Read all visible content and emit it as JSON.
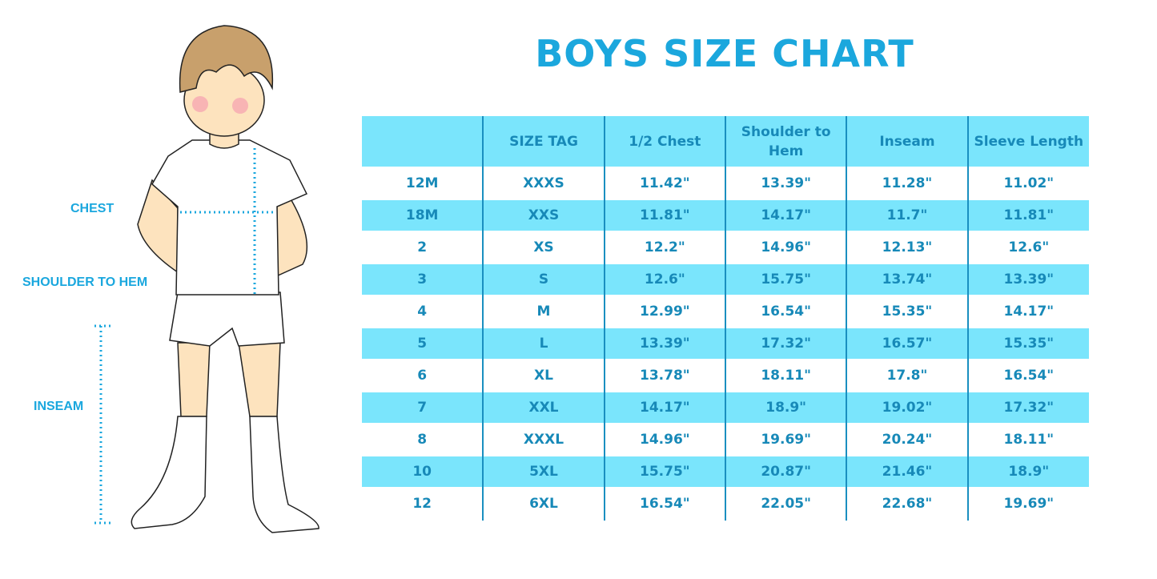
{
  "title": "BOYS SIZE CHART",
  "figure_labels": {
    "chest": "CHEST",
    "shoulder_to_hem": "SHOULDER TO HEM",
    "inseam": "INSEAM"
  },
  "colors": {
    "accent": "#1ba7dd",
    "row_fill": "#7ae5fc",
    "table_text": "#1789b8"
  },
  "table": {
    "headers": [
      "",
      "SIZE TAG",
      "1/2 Chest",
      "Shoulder to Hem",
      "Inseam",
      "Sleeve Length"
    ],
    "rows": [
      [
        "12M",
        "XXXS",
        "11.42\"",
        "13.39\"",
        "11.28\"",
        "11.02\""
      ],
      [
        "18M",
        "XXS",
        "11.81\"",
        "14.17\"",
        "11.7\"",
        "11.81\""
      ],
      [
        "2",
        "XS",
        "12.2\"",
        "14.96\"",
        "12.13\"",
        "12.6\""
      ],
      [
        "3",
        "S",
        "12.6\"",
        "15.75\"",
        "13.74\"",
        "13.39\""
      ],
      [
        "4",
        "M",
        "12.99\"",
        "16.54\"",
        "15.35\"",
        "14.17\""
      ],
      [
        "5",
        "L",
        "13.39\"",
        "17.32\"",
        "16.57\"",
        "15.35\""
      ],
      [
        "6",
        "XL",
        "13.78\"",
        "18.11\"",
        "17.8\"",
        "16.54\""
      ],
      [
        "7",
        "XXL",
        "14.17\"",
        "18.9\"",
        "19.02\"",
        "17.32\""
      ],
      [
        "8",
        "XXXL",
        "14.96\"",
        "19.69\"",
        "20.24\"",
        "18.11\""
      ],
      [
        "10",
        "5XL",
        "15.75\"",
        "20.87\"",
        "21.46\"",
        "18.9\""
      ],
      [
        "12",
        "6XL",
        "16.54\"",
        "22.05\"",
        "22.68\"",
        "19.69\""
      ]
    ]
  }
}
